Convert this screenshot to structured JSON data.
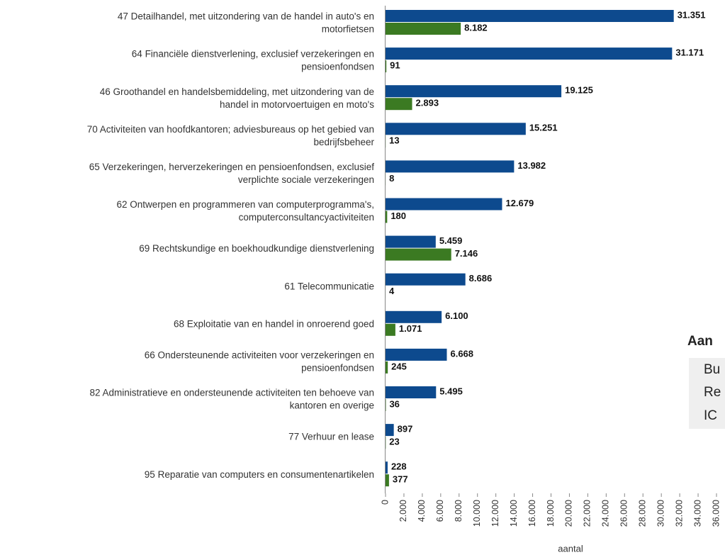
{
  "chart_data": {
    "type": "bar",
    "orientation": "horizontal",
    "categories": [
      [
        "47 Detailhandel, met uitzondering van de handel in auto's en",
        "motorfietsen"
      ],
      [
        "64 Financiële dienstverlening, exclusief verzekeringen en",
        "pensioenfondsen"
      ],
      [
        "46 Groothandel en handelsbemiddeling, met uitzondering van de",
        "handel in motorvoertuigen en moto's"
      ],
      [
        "70 Activiteiten van hoofdkantoren; adviesbureaus op het gebied van",
        "bedrijfsbeheer"
      ],
      [
        "65 Verzekeringen, herverzekeringen en pensioenfondsen, exclusief",
        "verplichte sociale verzekeringen"
      ],
      [
        "62 Ontwerpen en programmeren van computerprogramma's,",
        "computerconsultancyactiviteiten"
      ],
      [
        "69 Rechtskundige en boekhoudkundige dienstverlening"
      ],
      [
        "61 Telecommunicatie"
      ],
      [
        "68 Exploitatie van en handel in onroerend goed"
      ],
      [
        "66 Ondersteunende activiteiten voor verzekeringen en",
        "pensioenfondsen"
      ],
      [
        "82 Administratieve en ondersteunende activiteiten ten behoeve van",
        "kantoren en overige"
      ],
      [
        "77 Verhuur en lease"
      ],
      [
        "95 Reparatie van computers en consumentenartikelen"
      ]
    ],
    "series": [
      {
        "color": "#0d4a8e",
        "values": [
          31351,
          31171,
          19125,
          15251,
          13982,
          12679,
          5459,
          8686,
          6100,
          6668,
          5495,
          897,
          228
        ],
        "value_labels": [
          "31.351",
          "31.171",
          "19.125",
          "15.251",
          "13.982",
          "12.679",
          "5.459",
          "8.686",
          "6.100",
          "6.668",
          "5.495",
          "897",
          "228"
        ]
      },
      {
        "color": "#3b7a22",
        "values": [
          8182,
          91,
          2893,
          13,
          8,
          180,
          7146,
          4,
          1071,
          245,
          36,
          23,
          377
        ],
        "value_labels": [
          "8.182",
          "91",
          "2.893",
          "13",
          "8",
          "180",
          "7.146",
          "4",
          "1.071",
          "245",
          "36",
          "23",
          "377"
        ]
      }
    ],
    "xlabel": "aantal",
    "xlim": [
      0,
      36000
    ],
    "xticks": [
      0,
      {
        "value": 2000,
        "label": "2.000"
      },
      {
        "value": 4000,
        "label": "4.000"
      },
      {
        "value": 6000,
        "label": "6.000"
      },
      {
        "value": 8000,
        "label": "8.000"
      },
      {
        "value": 10000,
        "label": "10.000"
      },
      {
        "value": 12000,
        "label": "12.000"
      },
      {
        "value": 14000,
        "label": "14.000"
      },
      {
        "value": 16000,
        "label": "16.000"
      },
      {
        "value": 18000,
        "label": "18.000"
      },
      {
        "value": 20000,
        "label": "20.000"
      },
      {
        "value": 22000,
        "label": "22.000"
      },
      {
        "value": 24000,
        "label": "24.000"
      },
      {
        "value": 26000,
        "label": "26.000"
      },
      {
        "value": 28000,
        "label": "28.000"
      },
      {
        "value": 30000,
        "label": "30.000"
      },
      {
        "value": 32000,
        "label": "32.000"
      },
      {
        "value": 34000,
        "label": "34.000"
      },
      {
        "value": 36000,
        "label": "36.000"
      }
    ],
    "grid": false,
    "side_legend": {
      "title": "Aan",
      "items": [
        "Bu",
        "Re",
        "IC"
      ]
    }
  }
}
